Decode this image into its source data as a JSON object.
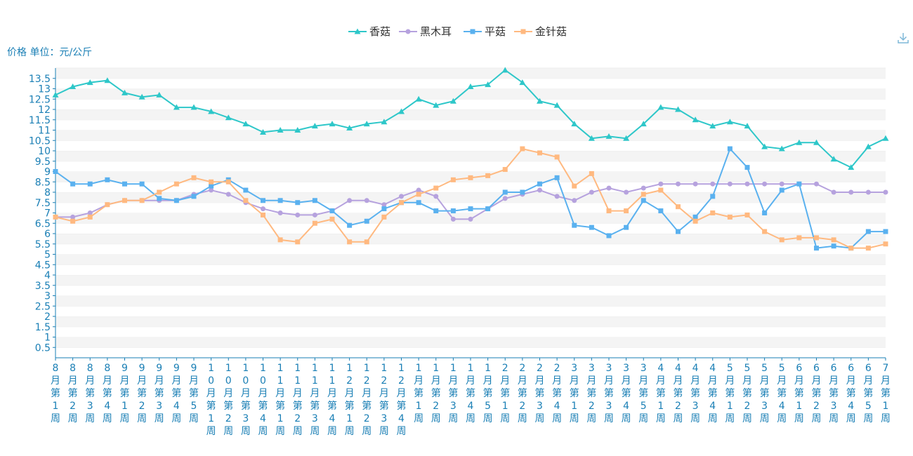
{
  "chart_data": {
    "type": "line",
    "ylabel": "价格 单位：元/公斤",
    "ylim": [
      0,
      14
    ],
    "y_ticks": [
      0.5,
      1,
      1.5,
      2,
      2.5,
      3,
      3.5,
      4,
      4.5,
      5,
      5.5,
      6,
      6.5,
      7,
      7.5,
      8,
      8.5,
      9,
      9.5,
      10,
      10.5,
      11,
      11.5,
      12,
      12.5,
      13,
      13.5
    ],
    "grid": "horizontal alternating bands",
    "legend_position": "top-center",
    "categories": [
      "8月第1周",
      "8月第2周",
      "8月第3周",
      "8月第4周",
      "9月第1周",
      "9月第2周",
      "9月第3周",
      "9月第4周",
      "9月第5周",
      "10月第1周",
      "10月第2周",
      "10月第3周",
      "10月第4周",
      "11月第1周",
      "11月第2周",
      "11月第3周",
      "11月第4周",
      "12月第1周",
      "12月第2周",
      "12月第3周",
      "12月第4周",
      "1月第1周",
      "1月第2周",
      "1月第3周",
      "1月第4周",
      "1月第5周",
      "2月第1周",
      "2月第2周",
      "2月第3周",
      "2月第4周",
      "3月第1周",
      "3月第2周",
      "3月第3周",
      "3月第4周",
      "3月第5周",
      "4月第1周",
      "4月第2周",
      "4月第3周",
      "4月第4周",
      "5月第1周",
      "5月第2周",
      "5月第3周",
      "5月第4周",
      "6月第1周",
      "6月第2周",
      "6月第3周",
      "6月第4周",
      "6月第5周",
      "7月第1周"
    ],
    "series": [
      {
        "name": "香菇",
        "color": "#2ec7c9",
        "marker": "triangle",
        "values": [
          12.7,
          13.1,
          13.3,
          13.4,
          12.8,
          12.6,
          12.7,
          12.1,
          12.1,
          11.9,
          11.6,
          11.3,
          10.9,
          11.0,
          11.0,
          11.2,
          11.3,
          11.1,
          11.3,
          11.4,
          11.9,
          12.5,
          12.2,
          12.4,
          13.1,
          13.2,
          13.9,
          13.3,
          12.4,
          12.2,
          11.3,
          10.6,
          10.7,
          10.6,
          11.3,
          12.1,
          12.0,
          11.5,
          11.2,
          11.4,
          11.2,
          10.2,
          10.1,
          10.4,
          10.4,
          9.6,
          9.2,
          10.2,
          10.6
        ]
      },
      {
        "name": "黑木耳",
        "color": "#b6a2de",
        "marker": "circle",
        "values": [
          6.8,
          6.8,
          7.0,
          7.4,
          7.6,
          7.6,
          7.6,
          7.6,
          7.9,
          8.1,
          7.9,
          7.5,
          7.2,
          7.0,
          6.9,
          6.9,
          7.1,
          7.6,
          7.6,
          7.4,
          7.8,
          8.1,
          7.8,
          6.7,
          6.7,
          7.2,
          7.7,
          7.9,
          8.1,
          7.8,
          7.6,
          8.0,
          8.2,
          8.0,
          8.2,
          8.4,
          8.4,
          8.4,
          8.4,
          8.4,
          8.4,
          8.4,
          8.4,
          8.4,
          8.4,
          8.0,
          8.0,
          8.0,
          8.0
        ]
      },
      {
        "name": "平菇",
        "color": "#5ab1ef",
        "marker": "square",
        "values": [
          9.0,
          8.4,
          8.4,
          8.6,
          8.4,
          8.4,
          7.7,
          7.6,
          7.8,
          8.3,
          8.6,
          8.1,
          7.6,
          7.6,
          7.5,
          7.6,
          7.1,
          6.4,
          6.6,
          7.2,
          7.5,
          7.5,
          7.1,
          7.1,
          7.2,
          7.2,
          8.0,
          8.0,
          8.4,
          8.7,
          6.4,
          6.3,
          5.9,
          6.3,
          7.6,
          7.1,
          6.1,
          6.8,
          7.8,
          10.1,
          9.2,
          7.0,
          8.1,
          8.4,
          5.3,
          5.4,
          5.3,
          6.1,
          6.1
        ]
      },
      {
        "name": "金针菇",
        "color": "#ffb980",
        "marker": "square",
        "values": [
          6.8,
          6.6,
          6.8,
          7.4,
          7.6,
          7.6,
          8.0,
          8.4,
          8.7,
          8.5,
          8.5,
          7.6,
          6.9,
          5.7,
          5.6,
          6.5,
          6.7,
          5.6,
          5.6,
          6.8,
          7.5,
          7.9,
          8.2,
          8.6,
          8.7,
          8.8,
          9.1,
          10.1,
          9.9,
          9.7,
          8.3,
          8.9,
          7.1,
          7.1,
          7.9,
          8.1,
          7.3,
          6.6,
          7.0,
          6.8,
          6.9,
          6.1,
          5.7,
          5.8,
          5.8,
          5.7,
          5.3,
          5.3,
          5.5
        ]
      }
    ]
  },
  "toolbox": {
    "download_icon": "download-icon"
  }
}
